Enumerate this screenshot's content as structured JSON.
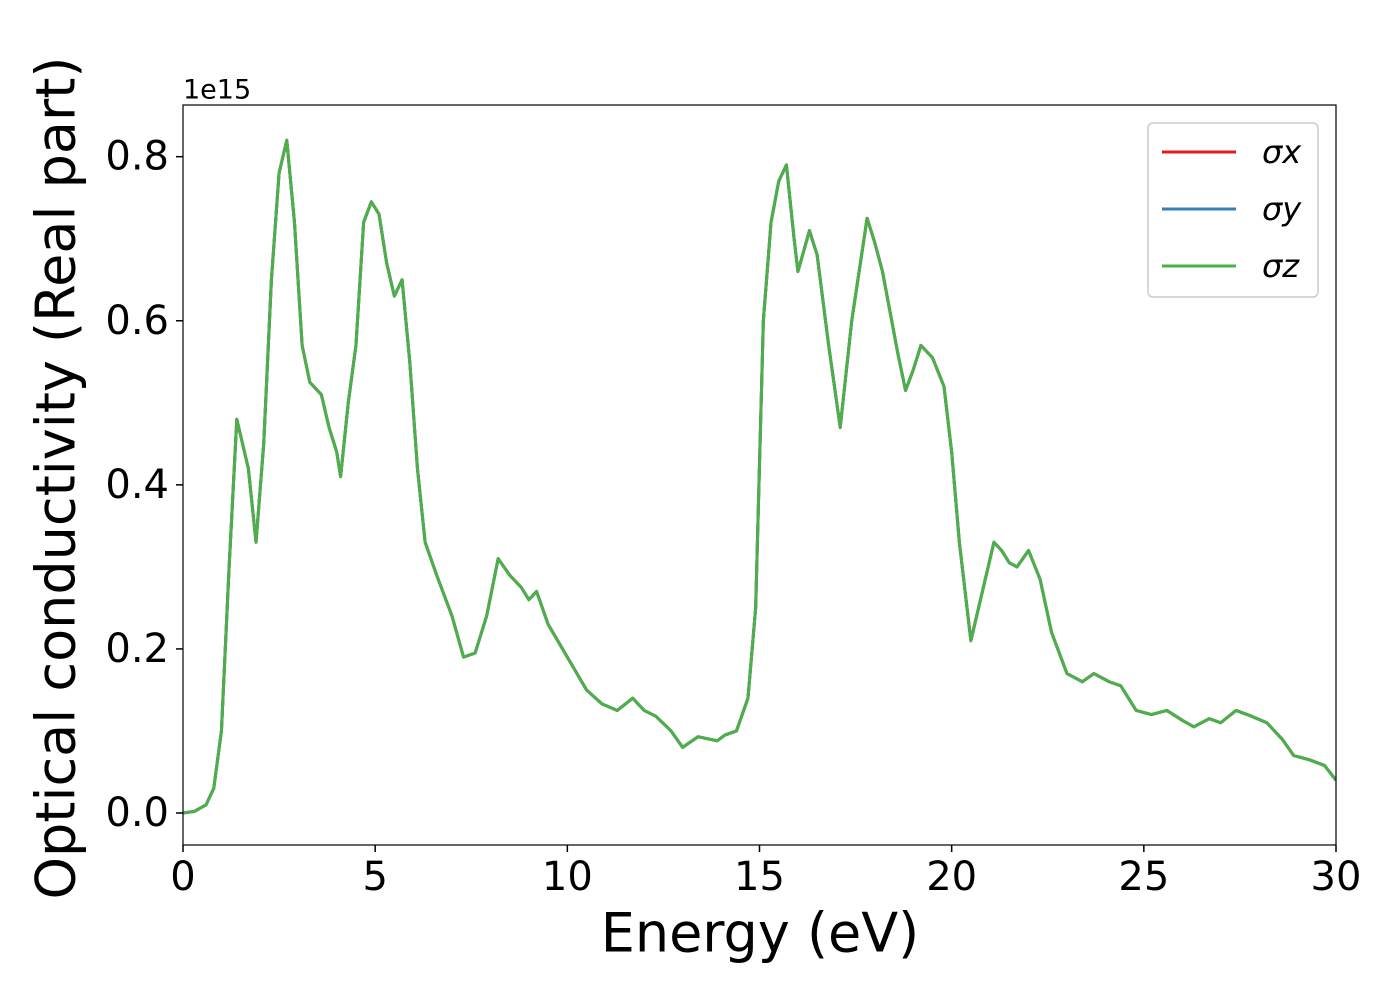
{
  "chart_data": {
    "type": "line",
    "xlabel": "Energy (eV)",
    "ylabel": "Optical conductivity (Real part)",
    "offset_text": "1e15",
    "xlim": [
      0,
      30
    ],
    "ylim": [
      -0.039,
      0.863
    ],
    "xticks": [
      0,
      5,
      10,
      15,
      20,
      25,
      30
    ],
    "yticks": [
      {
        "value": 0,
        "label": "0.0"
      },
      0.2,
      0.4,
      0.6,
      0.8
    ],
    "legend": "upper right",
    "x": [
      0,
      0.3,
      0.6,
      0.8,
      1.0,
      1.2,
      1.4,
      1.6,
      1.7,
      1.9,
      2.1,
      2.3,
      2.5,
      2.7,
      2.9,
      3.1,
      3.3,
      3.6,
      3.8,
      4.0,
      4.1,
      4.3,
      4.5,
      4.7,
      4.9,
      5.1,
      5.3,
      5.5,
      5.7,
      5.9,
      6.1,
      6.3,
      6.6,
      7.0,
      7.3,
      7.6,
      7.9,
      8.2,
      8.5,
      8.8,
      9.0,
      9.2,
      9.5,
      10.0,
      10.5,
      10.9,
      11.3,
      11.7,
      12.0,
      12.3,
      12.7,
      13.0,
      13.4,
      13.9,
      14.1,
      14.4,
      14.7,
      14.9,
      15.1,
      15.3,
      15.5,
      15.7,
      15.9,
      16.0,
      16.3,
      16.5,
      16.8,
      17.1,
      17.4,
      17.8,
      18.0,
      18.2,
      18.4,
      18.6,
      18.8,
      19.0,
      19.2,
      19.5,
      19.8,
      20.0,
      20.2,
      20.5,
      20.8,
      21.1,
      21.3,
      21.5,
      21.7,
      22.0,
      22.3,
      22.6,
      23.0,
      23.4,
      23.7,
      24.1,
      24.4,
      24.8,
      25.2,
      25.6,
      26.0,
      26.3,
      26.7,
      27.0,
      27.4,
      27.8,
      28.2,
      28.6,
      28.9,
      29.3,
      29.7,
      30.0
    ],
    "series": [
      {
        "name": "σx",
        "color": "#e41a1c",
        "values": [
          0,
          0.002,
          0.01,
          0.03,
          0.1,
          0.3,
          0.48,
          0.44,
          0.42,
          0.33,
          0.45,
          0.65,
          0.78,
          0.82,
          0.72,
          0.57,
          0.525,
          0.51,
          0.47,
          0.44,
          0.41,
          0.5,
          0.57,
          0.72,
          0.745,
          0.73,
          0.67,
          0.63,
          0.65,
          0.55,
          0.42,
          0.33,
          0.29,
          0.24,
          0.19,
          0.195,
          0.24,
          0.31,
          0.29,
          0.275,
          0.26,
          0.27,
          0.23,
          0.19,
          0.15,
          0.133,
          0.125,
          0.14,
          0.125,
          0.118,
          0.1,
          0.08,
          0.093,
          0.088,
          0.095,
          0.1,
          0.14,
          0.25,
          0.6,
          0.72,
          0.77,
          0.79,
          0.7,
          0.66,
          0.71,
          0.68,
          0.57,
          0.47,
          0.6,
          0.725,
          0.695,
          0.66,
          0.61,
          0.56,
          0.515,
          0.54,
          0.57,
          0.555,
          0.52,
          0.44,
          0.33,
          0.21,
          0.27,
          0.33,
          0.32,
          0.305,
          0.3,
          0.32,
          0.285,
          0.22,
          0.17,
          0.16,
          0.17,
          0.16,
          0.155,
          0.125,
          0.12,
          0.125,
          0.113,
          0.105,
          0.115,
          0.11,
          0.125,
          0.118,
          0.11,
          0.09,
          0.07,
          0.065,
          0.058,
          0.04
        ]
      },
      {
        "name": "σy",
        "color": "#377eb8",
        "values": [
          0,
          0.002,
          0.01,
          0.03,
          0.1,
          0.3,
          0.48,
          0.44,
          0.42,
          0.33,
          0.45,
          0.65,
          0.78,
          0.82,
          0.72,
          0.57,
          0.525,
          0.51,
          0.47,
          0.44,
          0.41,
          0.5,
          0.57,
          0.72,
          0.745,
          0.73,
          0.67,
          0.63,
          0.65,
          0.55,
          0.42,
          0.33,
          0.29,
          0.24,
          0.19,
          0.195,
          0.24,
          0.31,
          0.29,
          0.275,
          0.26,
          0.27,
          0.23,
          0.19,
          0.15,
          0.133,
          0.125,
          0.14,
          0.125,
          0.118,
          0.1,
          0.08,
          0.093,
          0.088,
          0.095,
          0.1,
          0.14,
          0.25,
          0.6,
          0.72,
          0.77,
          0.79,
          0.7,
          0.66,
          0.71,
          0.68,
          0.57,
          0.47,
          0.6,
          0.725,
          0.695,
          0.66,
          0.61,
          0.56,
          0.515,
          0.54,
          0.57,
          0.555,
          0.52,
          0.44,
          0.33,
          0.21,
          0.27,
          0.33,
          0.32,
          0.305,
          0.3,
          0.32,
          0.285,
          0.22,
          0.17,
          0.16,
          0.17,
          0.16,
          0.155,
          0.125,
          0.12,
          0.125,
          0.113,
          0.105,
          0.115,
          0.11,
          0.125,
          0.118,
          0.11,
          0.09,
          0.07,
          0.065,
          0.058,
          0.04
        ]
      },
      {
        "name": "σz",
        "color": "#4daf4a",
        "values": [
          0,
          0.002,
          0.01,
          0.03,
          0.1,
          0.3,
          0.48,
          0.44,
          0.42,
          0.33,
          0.45,
          0.65,
          0.78,
          0.82,
          0.72,
          0.57,
          0.525,
          0.51,
          0.47,
          0.44,
          0.41,
          0.5,
          0.57,
          0.72,
          0.745,
          0.73,
          0.67,
          0.63,
          0.65,
          0.55,
          0.42,
          0.33,
          0.29,
          0.24,
          0.19,
          0.195,
          0.24,
          0.31,
          0.29,
          0.275,
          0.26,
          0.27,
          0.23,
          0.19,
          0.15,
          0.133,
          0.125,
          0.14,
          0.125,
          0.118,
          0.1,
          0.08,
          0.093,
          0.088,
          0.095,
          0.1,
          0.14,
          0.25,
          0.6,
          0.72,
          0.77,
          0.79,
          0.7,
          0.66,
          0.71,
          0.68,
          0.57,
          0.47,
          0.6,
          0.725,
          0.695,
          0.66,
          0.61,
          0.56,
          0.515,
          0.54,
          0.57,
          0.555,
          0.52,
          0.44,
          0.33,
          0.21,
          0.27,
          0.33,
          0.32,
          0.305,
          0.3,
          0.32,
          0.285,
          0.22,
          0.17,
          0.16,
          0.17,
          0.16,
          0.155,
          0.125,
          0.12,
          0.125,
          0.113,
          0.105,
          0.115,
          0.11,
          0.125,
          0.118,
          0.11,
          0.09,
          0.07,
          0.065,
          0.058,
          0.04
        ]
      }
    ]
  }
}
